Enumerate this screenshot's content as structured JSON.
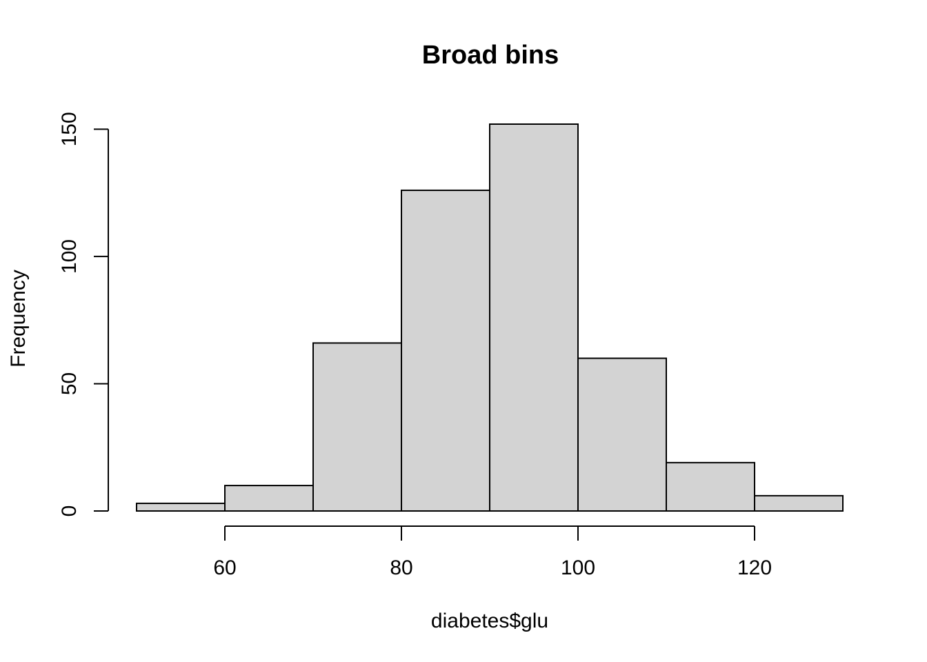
{
  "chart_data": {
    "type": "bar",
    "subtype": "histogram",
    "title": "Broad bins",
    "xlabel": "diabetes$glu",
    "ylabel": "Frequency",
    "bins": [
      {
        "start": 50,
        "end": 60,
        "value": 3
      },
      {
        "start": 60,
        "end": 70,
        "value": 10
      },
      {
        "start": 70,
        "end": 80,
        "value": 66
      },
      {
        "start": 80,
        "end": 90,
        "value": 126
      },
      {
        "start": 90,
        "end": 100,
        "value": 152
      },
      {
        "start": 100,
        "end": 110,
        "value": 60
      },
      {
        "start": 110,
        "end": 120,
        "value": 19
      },
      {
        "start": 120,
        "end": 130,
        "value": 6
      }
    ],
    "xticks": [
      60,
      80,
      100,
      120
    ],
    "yticks": [
      0,
      50,
      100,
      150
    ],
    "xlim": [
      50,
      130
    ],
    "ylim": [
      0,
      152
    ],
    "grid": false,
    "legend": "none",
    "colors": {
      "bar_fill": "#d3d3d3",
      "bar_stroke": "#000000"
    }
  }
}
